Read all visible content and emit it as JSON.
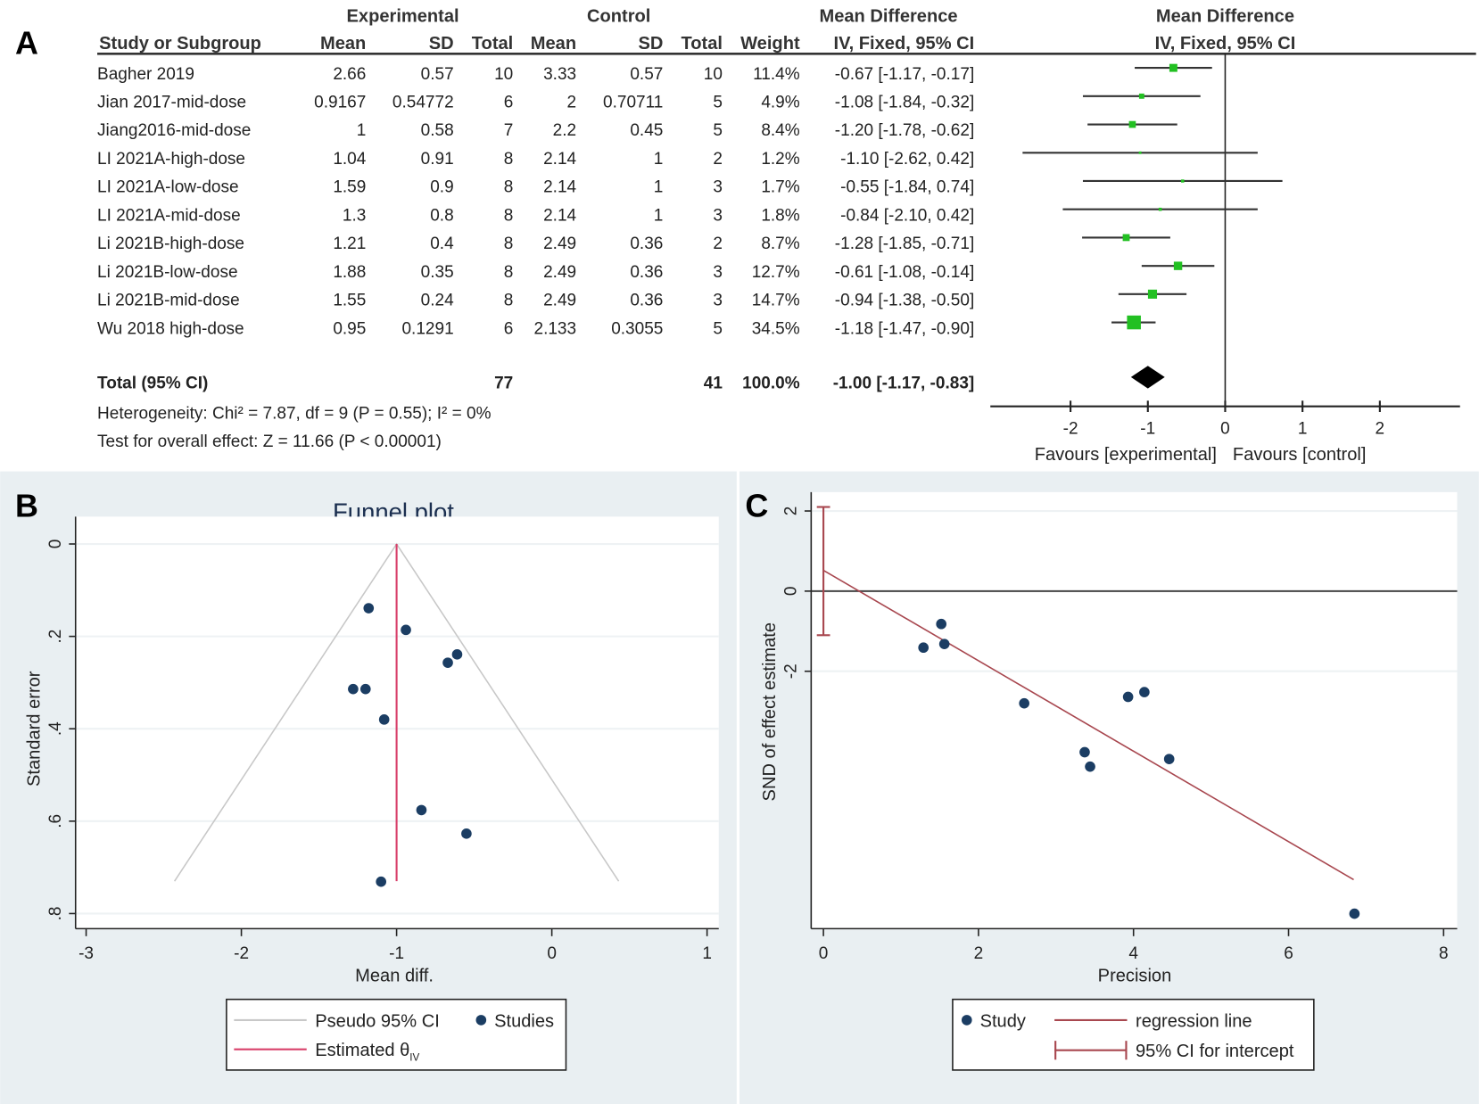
{
  "panel_labels": {
    "a": "A",
    "b": "B",
    "c": "C"
  },
  "chart_data": [
    {
      "type": "forest",
      "headers": {
        "experimental": "Experimental",
        "control": "Control",
        "md_group": "Mean Difference",
        "md_method": "IV, Fixed, 95% CI",
        "plot_group": "Mean Difference",
        "plot_method": "IV, Fixed, 95% CI",
        "columns": [
          "Study or Subgroup",
          "Mean",
          "SD",
          "Total",
          "Mean",
          "SD",
          "Total",
          "Weight",
          "IV, Fixed, 95% CI"
        ]
      },
      "studies": [
        {
          "name": "Bagher 2019",
          "e_mean": "2.66",
          "e_sd": "0.57",
          "e_n": "10",
          "c_mean": "3.33",
          "c_sd": "0.57",
          "c_n": "10",
          "weight": "11.4%",
          "ci": "-0.67 [-1.17, -0.17]",
          "md": -0.67,
          "lo": -1.17,
          "hi": -0.17,
          "w": 11.4
        },
        {
          "name": "Jian 2017-mid-dose",
          "e_mean": "0.9167",
          "e_sd": "0.54772",
          "e_n": "6",
          "c_mean": "2",
          "c_sd": "0.70711",
          "c_n": "5",
          "weight": "4.9%",
          "ci": "-1.08 [-1.84, -0.32]",
          "md": -1.08,
          "lo": -1.84,
          "hi": -0.32,
          "w": 4.9
        },
        {
          "name": "Jiang2016-mid-dose",
          "e_mean": "1",
          "e_sd": "0.58",
          "e_n": "7",
          "c_mean": "2.2",
          "c_sd": "0.45",
          "c_n": "5",
          "weight": "8.4%",
          "ci": "-1.20 [-1.78, -0.62]",
          "md": -1.2,
          "lo": -1.78,
          "hi": -0.62,
          "w": 8.4
        },
        {
          "name": "LI 2021A-high-dose",
          "e_mean": "1.04",
          "e_sd": "0.91",
          "e_n": "8",
          "c_mean": "2.14",
          "c_sd": "1",
          "c_n": "2",
          "weight": "1.2%",
          "ci": "-1.10 [-2.62, 0.42]",
          "md": -1.1,
          "lo": -2.62,
          "hi": 0.42,
          "w": 1.2
        },
        {
          "name": "LI 2021A-low-dose",
          "e_mean": "1.59",
          "e_sd": "0.9",
          "e_n": "8",
          "c_mean": "2.14",
          "c_sd": "1",
          "c_n": "3",
          "weight": "1.7%",
          "ci": "-0.55 [-1.84, 0.74]",
          "md": -0.55,
          "lo": -1.84,
          "hi": 0.74,
          "w": 1.7
        },
        {
          "name": "LI 2021A-mid-dose",
          "e_mean": "1.3",
          "e_sd": "0.8",
          "e_n": "8",
          "c_mean": "2.14",
          "c_sd": "1",
          "c_n": "3",
          "weight": "1.8%",
          "ci": "-0.84 [-2.10, 0.42]",
          "md": -0.84,
          "lo": -2.1,
          "hi": 0.42,
          "w": 1.8
        },
        {
          "name": "Li 2021B-high-dose",
          "e_mean": "1.21",
          "e_sd": "0.4",
          "e_n": "8",
          "c_mean": "2.49",
          "c_sd": "0.36",
          "c_n": "2",
          "weight": "8.7%",
          "ci": "-1.28 [-1.85, -0.71]",
          "md": -1.28,
          "lo": -1.85,
          "hi": -0.71,
          "w": 8.7
        },
        {
          "name": "Li 2021B-low-dose",
          "e_mean": "1.88",
          "e_sd": "0.35",
          "e_n": "8",
          "c_mean": "2.49",
          "c_sd": "0.36",
          "c_n": "3",
          "weight": "12.7%",
          "ci": "-0.61 [-1.08, -0.14]",
          "md": -0.61,
          "lo": -1.08,
          "hi": -0.14,
          "w": 12.7
        },
        {
          "name": "Li 2021B-mid-dose",
          "e_mean": "1.55",
          "e_sd": "0.24",
          "e_n": "8",
          "c_mean": "2.49",
          "c_sd": "0.36",
          "c_n": "3",
          "weight": "14.7%",
          "ci": "-0.94 [-1.38, -0.50]",
          "md": -0.94,
          "lo": -1.38,
          "hi": -0.5,
          "w": 14.7
        },
        {
          "name": "Wu 2018 high-dose",
          "e_mean": "0.95",
          "e_sd": "0.1291",
          "e_n": "6",
          "c_mean": "2.133",
          "c_sd": "0.3055",
          "c_n": "5",
          "weight": "34.5%",
          "ci": "-1.18 [-1.47, -0.90]",
          "md": -1.18,
          "lo": -1.47,
          "hi": -0.9,
          "w": 34.5
        }
      ],
      "total": {
        "label": "Total (95% CI)",
        "e_n": "77",
        "c_n": "41",
        "weight": "100.0%",
        "ci": "-1.00 [-1.17, -0.83]",
        "md": -1.0,
        "lo": -1.17,
        "hi": -0.83
      },
      "heterogeneity": "Heterogeneity: Chi² = 7.87, df = 9 (P = 0.55); I² = 0%",
      "overall_effect": "Test for overall effect: Z = 11.66 (P < 0.00001)",
      "xticks": [
        "-2",
        "-1",
        "0",
        "1",
        "2"
      ],
      "xlim": [
        -3,
        3
      ],
      "favours_left": "Favours [experimental]",
      "favours_right": "Favours [control]",
      "marker_color": "#22c022"
    },
    {
      "type": "scatter",
      "title": "Funnel plot",
      "xlabel": "Mean diff.",
      "ylabel": "Standard error",
      "xticks": [
        "-3",
        "-2",
        "-1",
        "0",
        "1"
      ],
      "yticks": [
        "0",
        ".2",
        ".4",
        ".6",
        ".8"
      ],
      "xlim": [
        -3,
        1
      ],
      "ylim": [
        0,
        0.8
      ],
      "y_reversed": true,
      "estimate": -1.0,
      "max_se": 0.73,
      "points": [
        {
          "x": -1.18,
          "y": 0.139
        },
        {
          "x": -0.94,
          "y": 0.186
        },
        {
          "x": -0.61,
          "y": 0.239
        },
        {
          "x": -0.67,
          "y": 0.257
        },
        {
          "x": -1.28,
          "y": 0.314
        },
        {
          "x": -1.2,
          "y": 0.314
        },
        {
          "x": -1.08,
          "y": 0.38
        },
        {
          "x": -0.84,
          "y": 0.576
        },
        {
          "x": -0.55,
          "y": 0.627
        },
        {
          "x": -1.1,
          "y": 0.731
        }
      ],
      "legend": {
        "pseudo": "Pseudo 95% CI",
        "studies": "Studies",
        "estimated": "Estimated θ",
        "estimated_sub": "IV"
      },
      "colors": {
        "points": "#1b3d63",
        "estimate": "#d8406a",
        "pseudo": "#c8c8c8"
      }
    },
    {
      "type": "scatter",
      "title": "",
      "xlabel": "Precision",
      "ylabel": "SND of effect estimate",
      "xticks": [
        "0",
        "2",
        "4",
        "6",
        "8"
      ],
      "yticks": [
        "2",
        "0",
        "-2"
      ],
      "xlim": [
        0,
        8
      ],
      "ylim": [
        -8.4,
        2.4
      ],
      "points": [
        {
          "x": 1.29,
          "y": -1.41
        },
        {
          "x": 1.52,
          "y": -0.82
        },
        {
          "x": 1.56,
          "y": -1.32
        },
        {
          "x": 2.59,
          "y": -2.8
        },
        {
          "x": 3.37,
          "y": -4.02
        },
        {
          "x": 3.44,
          "y": -4.38
        },
        {
          "x": 3.93,
          "y": -2.64
        },
        {
          "x": 4.14,
          "y": -2.52
        },
        {
          "x": 4.46,
          "y": -4.19
        },
        {
          "x": 6.85,
          "y": -8.05
        }
      ],
      "regression": {
        "intercept": 0.52,
        "x_end": 6.84,
        "y_end": -7.2
      },
      "intercept_ci": [
        -1.1,
        2.1
      ],
      "legend": {
        "study": "Study",
        "regression": "regression line",
        "ci": "95% CI for intercept"
      },
      "colors": {
        "points": "#1b3d63",
        "regression": "#a8474f"
      }
    }
  ]
}
